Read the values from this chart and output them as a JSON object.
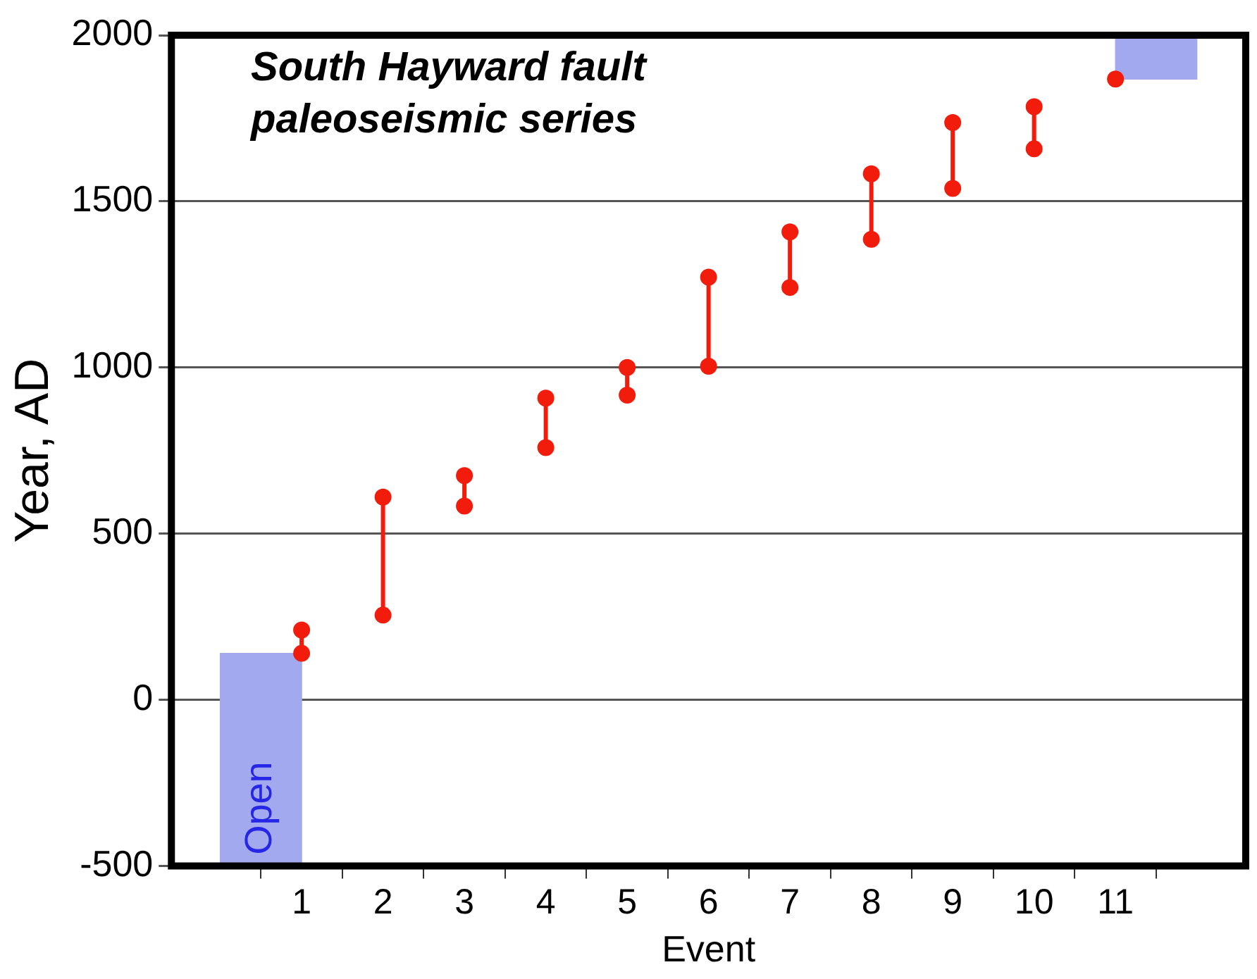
{
  "chart_data": {
    "type": "bar",
    "title": "South Hayward fault paleoseismic series",
    "xlabel": "Event",
    "ylabel": "Year, AD",
    "xlim": [
      0,
      12
    ],
    "xticks": [
      1,
      2,
      3,
      4,
      5,
      6,
      7,
      8,
      9,
      10,
      11
    ],
    "ylim": [
      -500,
      2000
    ],
    "yticks": [
      -500,
      0,
      500,
      1000,
      1500,
      2000
    ],
    "grid": "y",
    "marker": "circle",
    "line_style": "solid",
    "series": [
      {
        "x": [
          0.5,
          11.5
        ],
        "color": "#a3a9ee",
        "base": [
          -500,
          1868
        ],
        "values": [
          640,
          132
        ]
      },
      {
        "type": "line",
        "color": "#f21c0c",
        "x": [
          1,
          1
        ],
        "values": [
          140,
          210
        ]
      },
      {
        "type": "line",
        "color": "#f21c0c",
        "x": [
          2,
          2
        ],
        "values": [
          255,
          610
        ]
      },
      {
        "type": "line",
        "color": "#f21c0c",
        "x": [
          3,
          3
        ],
        "values": [
          583,
          675
        ]
      },
      {
        "type": "line",
        "color": "#f21c0c",
        "x": [
          4,
          4
        ],
        "values": [
          759,
          908
        ]
      },
      {
        "type": "line",
        "color": "#f21c0c",
        "x": [
          5,
          5
        ],
        "values": [
          917,
          1000
        ]
      },
      {
        "type": "line",
        "color": "#f21c0c",
        "x": [
          6,
          6
        ],
        "values": [
          1004,
          1272
        ]
      },
      {
        "type": "line",
        "color": "#f21c0c",
        "x": [
          7,
          7
        ],
        "values": [
          1241,
          1408
        ]
      },
      {
        "type": "line",
        "color": "#f21c0c",
        "x": [
          8,
          8
        ],
        "values": [
          1386,
          1583
        ]
      },
      {
        "type": "line",
        "color": "#f21c0c",
        "x": [
          9,
          9
        ],
        "values": [
          1539,
          1737
        ]
      },
      {
        "type": "line",
        "color": "#f21c0c",
        "x": [
          10,
          10
        ],
        "values": [
          1658,
          1785
        ]
      },
      {
        "type": "scatter",
        "color": "#f21c0c",
        "x": [
          11
        ],
        "values": [
          1868
        ]
      }
    ],
    "annotations": [
      "Open"
    ]
  }
}
